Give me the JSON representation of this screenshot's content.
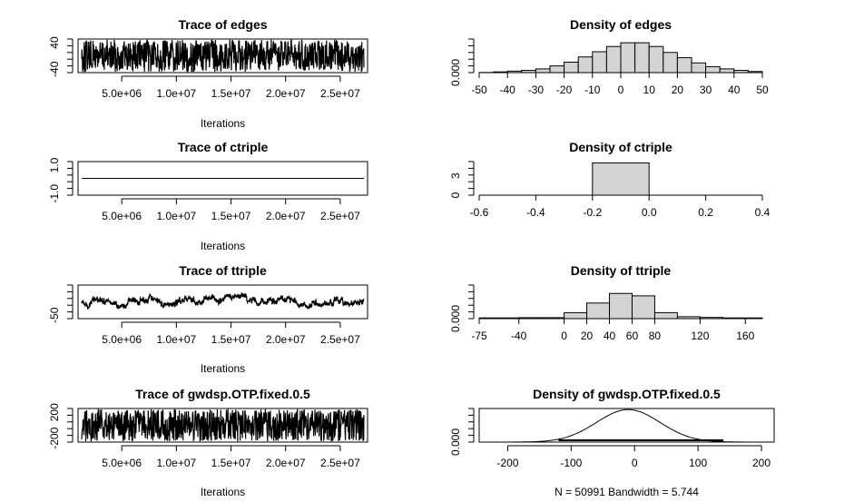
{
  "chart_data": [
    {
      "type": "line",
      "title": "Trace of edges",
      "xlabel": "Iterations",
      "ylabel": "",
      "x_ticks": [
        "5.0e+06",
        "1.0e+07",
        "1.5e+07",
        "2.0e+07",
        "2.5e+07"
      ],
      "x_tick_values": [
        5000000,
        10000000,
        15000000,
        20000000,
        25000000
      ],
      "xlim": [
        1000000,
        27500000
      ],
      "y_ticks": [
        "40",
        "-40"
      ],
      "y_tick_values": [
        40,
        -40
      ],
      "ylim": [
        -50,
        50
      ],
      "trace": {
        "style": "noise",
        "center": 0,
        "spread": 0.6
      }
    },
    {
      "type": "bar",
      "title": "Density of edges",
      "xlabel": "",
      "x_ticks": [
        "-50",
        "-40",
        "-30",
        "-20",
        "-10",
        "0",
        "10",
        "20",
        "30",
        "40",
        "50"
      ],
      "x_tick_values": [
        -50,
        -40,
        -30,
        -20,
        -10,
        0,
        10,
        20,
        30,
        40,
        50
      ],
      "xlim": [
        -50,
        50
      ],
      "y_ticks": [
        "0.000"
      ],
      "y_tick_values": [
        0
      ],
      "ylim": [
        0,
        0.045
      ],
      "bin_edges": [
        -50,
        -45,
        -40,
        -35,
        -30,
        -25,
        -20,
        -15,
        -10,
        -5,
        0,
        5,
        10,
        15,
        20,
        25,
        30,
        35,
        40,
        45,
        50
      ],
      "values": [
        0.0002,
        0.001,
        0.002,
        0.003,
        0.005,
        0.009,
        0.014,
        0.021,
        0.028,
        0.035,
        0.04,
        0.04,
        0.035,
        0.027,
        0.02,
        0.013,
        0.008,
        0.005,
        0.003,
        0.0015
      ]
    },
    {
      "type": "line",
      "title": "Trace of ctriple",
      "xlabel": "Iterations",
      "x_ticks": [
        "5.0e+06",
        "1.0e+07",
        "1.5e+07",
        "2.0e+07",
        "2.5e+07"
      ],
      "x_tick_values": [
        5000000,
        10000000,
        15000000,
        20000000,
        25000000
      ],
      "xlim": [
        1000000,
        27500000
      ],
      "y_ticks": [
        "1.0",
        "-1.0"
      ],
      "y_tick_values": [
        1,
        -1
      ],
      "ylim": [
        -1.1,
        1.1
      ],
      "trace": {
        "style": "flat",
        "center": 0
      }
    },
    {
      "type": "bar",
      "title": "Density of ctriple",
      "xlabel": "",
      "x_ticks": [
        "-0.6",
        "-0.4",
        "-0.2",
        "0.0",
        "0.2",
        "0.4"
      ],
      "x_tick_values": [
        -0.6,
        -0.4,
        -0.2,
        0,
        0.2,
        0.4
      ],
      "xlim": [
        -0.6,
        0.4
      ],
      "y_ticks": [
        "3",
        "0"
      ],
      "y_tick_values": [
        3,
        0
      ],
      "ylim": [
        0,
        5.2
      ],
      "bin_edges": [
        -0.6,
        -0.4,
        -0.2,
        0,
        0.2,
        0.4
      ],
      "values": [
        0,
        0,
        5,
        0,
        0
      ]
    },
    {
      "type": "line",
      "title": "Trace of ttriple",
      "xlabel": "Iterations",
      "x_ticks": [
        "5.0e+06",
        "1.0e+07",
        "1.5e+07",
        "2.0e+07",
        "2.5e+07"
      ],
      "x_tick_values": [
        5000000,
        10000000,
        15000000,
        20000000,
        25000000
      ],
      "xlim": [
        1000000,
        27500000
      ],
      "y_ticks": [
        "-50"
      ],
      "y_tick_values": [
        -50
      ],
      "ylim": [
        -75,
        175
      ],
      "trace": {
        "style": "walk",
        "center": 50,
        "spread": 0.25
      }
    },
    {
      "type": "bar",
      "title": "Density of ttriple",
      "xlabel": "",
      "x_ticks": [
        "-75",
        "-40",
        "0",
        "20",
        "40",
        "60",
        "80",
        "120",
        "160"
      ],
      "x_tick_values": [
        -75,
        -40,
        0,
        20,
        40,
        60,
        80,
        120,
        160
      ],
      "xlim": [
        -75,
        175
      ],
      "y_ticks": [
        "0.000"
      ],
      "y_tick_values": [
        0
      ],
      "ylim": [
        0,
        0.014
      ],
      "bin_edges": [
        -75,
        -40,
        -20,
        0,
        20,
        40,
        60,
        80,
        100,
        120,
        140,
        175
      ],
      "values": [
        0.0003,
        0.0004,
        0.0004,
        0.0025,
        0.0065,
        0.0105,
        0.0095,
        0.0025,
        0.0008,
        0.0005,
        0.0003
      ]
    },
    {
      "type": "line",
      "title": "Trace of gwdsp.OTP.fixed.0.5",
      "xlabel": "Iterations",
      "x_ticks": [
        "5.0e+06",
        "1.0e+07",
        "1.5e+07",
        "2.0e+07",
        "2.5e+07"
      ],
      "x_tick_values": [
        5000000,
        10000000,
        15000000,
        20000000,
        25000000
      ],
      "xlim": [
        1000000,
        27500000
      ],
      "y_ticks": [
        "200",
        "-200"
      ],
      "y_tick_values": [
        200,
        -200
      ],
      "ylim": [
        -260,
        260
      ],
      "trace": {
        "style": "noise",
        "center": 0,
        "spread": 0.6
      }
    },
    {
      "type": "line",
      "title": "Density of gwdsp.OTP.fixed.0.5",
      "xlabel": "N = 50991   Bandwidth = 5.744",
      "x_ticks": [
        "-200",
        "-100",
        "0",
        "100",
        "200"
      ],
      "x_tick_values": [
        -200,
        -100,
        0,
        100,
        200
      ],
      "xlim": [
        -245,
        220
      ],
      "y_ticks": [
        "0.000"
      ],
      "y_tick_values": [
        0
      ],
      "ylim": [
        0,
        0.0062
      ],
      "density": {
        "mean": -10,
        "sd": 50,
        "peak": 0.006
      }
    }
  ]
}
